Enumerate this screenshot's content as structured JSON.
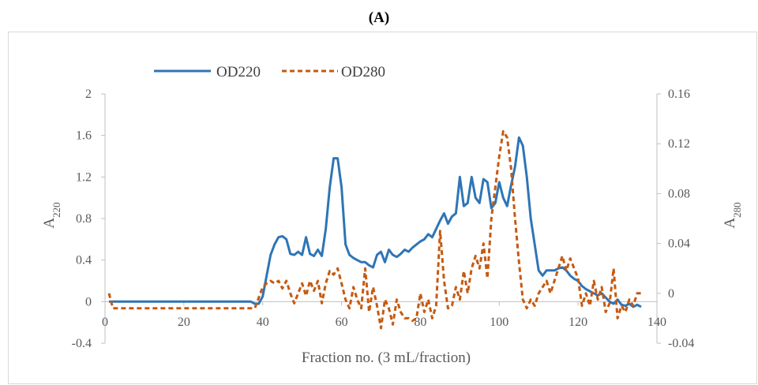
{
  "figure_label": "(A)",
  "chart_data": {
    "type": "line",
    "xlabel": "Fraction no. (3 mL/fraction)",
    "ylabel": {
      "base": "A",
      "sub": "220"
    },
    "y2label": {
      "base": "A",
      "sub": "280"
    },
    "xlim": [
      0,
      140
    ],
    "ylim": [
      -0.4,
      2
    ],
    "y2lim": [
      -0.04,
      0.16
    ],
    "x_ticks": [
      0,
      20,
      40,
      60,
      80,
      100,
      120,
      140
    ],
    "y_ticks": [
      -0.4,
      0,
      0.4,
      0.8,
      1.2,
      1.6,
      2
    ],
    "y_tick_labels": [
      "-0.4",
      "0",
      "0.4",
      "0.8",
      "1.2",
      "1.6",
      "2"
    ],
    "y2_ticks": [
      -0.04,
      0,
      0.04,
      0.08,
      0.12,
      0.16
    ],
    "y2_tick_labels": [
      "-0.04",
      "0",
      "0.04",
      "0.08",
      "0.12",
      "0.16"
    ],
    "grid": false,
    "legend_position": "top-left",
    "series": [
      {
        "name": "OD220",
        "axis": "left",
        "color": "#2e75b6",
        "style": "solid",
        "x": [
          1,
          5,
          10,
          15,
          20,
          25,
          30,
          35,
          37,
          38,
          39,
          40,
          41,
          42,
          43,
          44,
          45,
          46,
          47,
          48,
          49,
          50,
          51,
          52,
          53,
          54,
          55,
          56,
          57,
          58,
          59,
          60,
          61,
          62,
          63,
          64,
          65,
          66,
          67,
          68,
          69,
          70,
          71,
          72,
          73,
          74,
          75,
          76,
          77,
          78,
          79,
          80,
          81,
          82,
          83,
          84,
          85,
          86,
          87,
          88,
          89,
          90,
          91,
          92,
          93,
          94,
          95,
          96,
          97,
          98,
          99,
          100,
          101,
          102,
          103,
          104,
          105,
          106,
          107,
          108,
          109,
          110,
          111,
          112,
          113,
          114,
          115,
          116,
          117,
          118,
          119,
          120,
          121,
          122,
          123,
          124,
          125,
          126,
          127,
          128,
          129,
          130,
          131,
          132,
          133,
          134,
          135,
          136
        ],
        "y": [
          0,
          0,
          0,
          0,
          0,
          0,
          0,
          0,
          0,
          -0.02,
          -0.02,
          0.05,
          0.25,
          0.45,
          0.55,
          0.62,
          0.63,
          0.6,
          0.46,
          0.45,
          0.48,
          0.45,
          0.62,
          0.46,
          0.44,
          0.5,
          0.44,
          0.7,
          1.1,
          1.38,
          1.38,
          1.1,
          0.55,
          0.45,
          0.42,
          0.4,
          0.38,
          0.38,
          0.35,
          0.33,
          0.45,
          0.48,
          0.38,
          0.5,
          0.45,
          0.43,
          0.46,
          0.5,
          0.48,
          0.52,
          0.55,
          0.58,
          0.6,
          0.65,
          0.62,
          0.7,
          0.78,
          0.85,
          0.75,
          0.82,
          0.85,
          1.2,
          0.92,
          0.95,
          1.2,
          1.0,
          0.95,
          1.18,
          1.15,
          0.9,
          0.95,
          1.15,
          1.0,
          0.92,
          1.12,
          1.3,
          1.58,
          1.5,
          1.2,
          0.8,
          0.55,
          0.3,
          0.25,
          0.3,
          0.3,
          0.3,
          0.32,
          0.33,
          0.3,
          0.25,
          0.22,
          0.2,
          0.15,
          0.12,
          0.1,
          0.08,
          0.06,
          0.08,
          0.04,
          0.0,
          -0.02,
          0.02,
          -0.03,
          -0.04,
          -0.02,
          -0.05,
          -0.03,
          -0.05
        ]
      },
      {
        "name": "OD280",
        "axis": "right",
        "color": "#c55a11",
        "style": "dashed",
        "x": [
          1,
          2,
          3,
          5,
          10,
          15,
          20,
          25,
          30,
          35,
          38,
          40,
          41,
          42,
          43,
          44,
          45,
          46,
          47,
          48,
          49,
          50,
          51,
          52,
          53,
          54,
          55,
          56,
          57,
          58,
          59,
          60,
          61,
          62,
          63,
          64,
          65,
          66,
          67,
          68,
          69,
          70,
          71,
          72,
          73,
          74,
          75,
          76,
          77,
          78,
          79,
          80,
          81,
          82,
          83,
          84,
          85,
          86,
          87,
          88,
          89,
          90,
          91,
          92,
          93,
          94,
          95,
          96,
          97,
          98,
          99,
          100,
          101,
          102,
          103,
          104,
          105,
          106,
          107,
          108,
          109,
          110,
          111,
          112,
          113,
          114,
          115,
          116,
          117,
          118,
          119,
          120,
          121,
          122,
          123,
          124,
          125,
          126,
          127,
          128,
          129,
          130,
          131,
          132,
          133,
          134,
          135,
          136
        ],
        "y": [
          0,
          -0.012,
          -0.012,
          -0.012,
          -0.012,
          -0.012,
          -0.012,
          -0.012,
          -0.012,
          -0.012,
          -0.012,
          0.005,
          0.008,
          0.01,
          0.008,
          0.01,
          0.004,
          0.01,
          0.0,
          -0.008,
          0.0,
          0.008,
          -0.002,
          0.01,
          0.002,
          0.01,
          -0.008,
          0.008,
          0.018,
          0.015,
          0.02,
          0.008,
          -0.005,
          -0.012,
          0.005,
          -0.005,
          -0.012,
          0.02,
          -0.015,
          0.005,
          -0.01,
          -0.028,
          -0.005,
          -0.012,
          -0.025,
          -0.005,
          -0.015,
          -0.02,
          -0.02,
          -0.022,
          -0.02,
          0.0,
          -0.015,
          -0.005,
          -0.02,
          -0.01,
          0.05,
          0.01,
          -0.012,
          -0.01,
          0.005,
          -0.005,
          0.018,
          0.0,
          0.02,
          0.03,
          0.02,
          0.04,
          0.012,
          0.06,
          0.085,
          0.11,
          0.13,
          0.125,
          0.1,
          0.06,
          0.025,
          -0.005,
          -0.012,
          -0.005,
          -0.01,
          0.0,
          0.005,
          0.01,
          0.0,
          0.01,
          0.02,
          0.03,
          0.018,
          0.028,
          0.02,
          0.012,
          -0.01,
          0.0,
          -0.01,
          0.01,
          -0.005,
          0.005,
          -0.015,
          -0.008,
          0.02,
          -0.02,
          -0.01,
          -0.015,
          -0.005,
          -0.01,
          0.0,
          0.0
        ]
      }
    ]
  }
}
